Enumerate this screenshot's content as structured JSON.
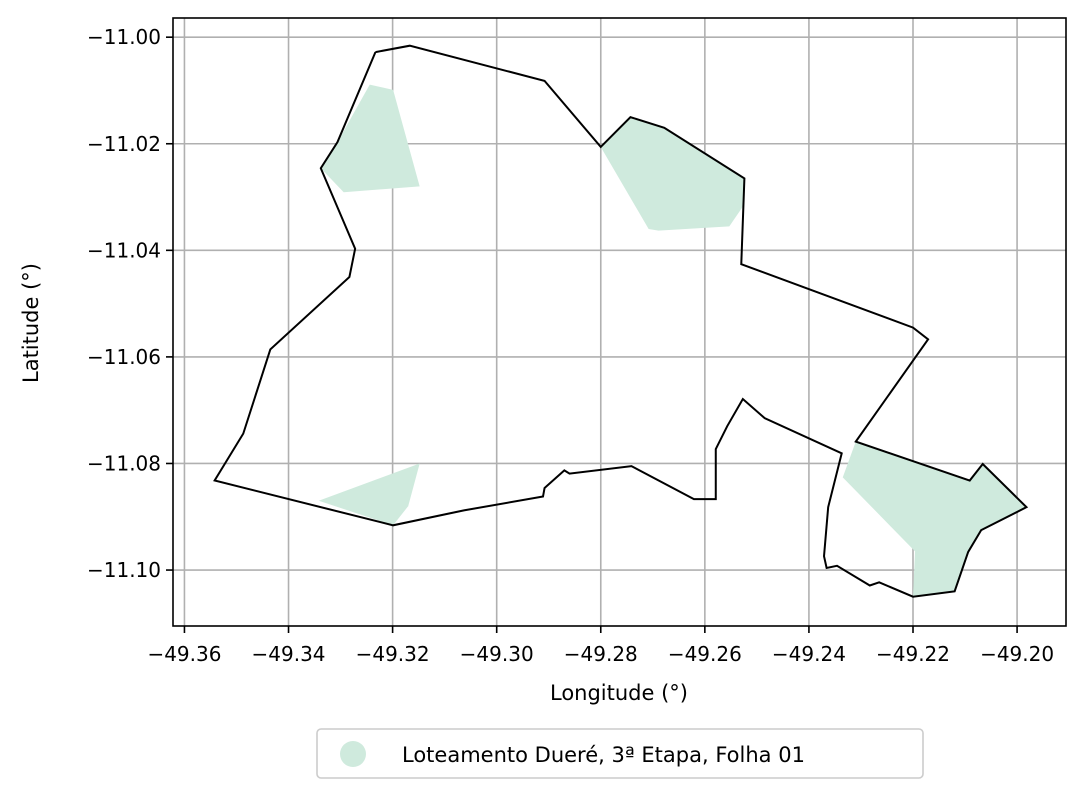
{
  "chart_data": {
    "type": "map",
    "xlabel": "Longitude (°)",
    "ylabel": "Latitude (°)",
    "xlim": [
      -49.3622,
      -49.1906
    ],
    "ylim": [
      -11.1105,
      -10.9964
    ],
    "xticks": [
      -49.36,
      -49.34,
      -49.32,
      -49.3,
      -49.28,
      -49.26,
      -49.24,
      -49.22,
      -49.2
    ],
    "xtick_labels": [
      "−49.36",
      "−49.34",
      "−49.32",
      "−49.30",
      "−49.28",
      "−49.26",
      "−49.24",
      "−49.22",
      "−49.20"
    ],
    "yticks": [
      -11.0,
      -11.02,
      -11.04,
      -11.06,
      -11.08,
      -11.1
    ],
    "ytick_labels": [
      "−11.00",
      "−11.02",
      "−11.04",
      "−11.06",
      "−11.08",
      "−11.10"
    ],
    "grid": true,
    "legend_position": "bottom-center, below plot",
    "legend": [
      {
        "label": "Loteamento Dueré, 3ª Etapa, Folha 01",
        "color": "#cfeadd",
        "marker": "circle"
      }
    ],
    "fill_color": "#cfeadd",
    "outline_color": "#000000",
    "boundary": [
      [
        -49.3233,
        -11.0028
      ],
      [
        -49.3167,
        -11.0016
      ],
      [
        -49.2908,
        -11.0082
      ],
      [
        -49.28,
        -11.0206
      ],
      [
        -49.2743,
        -11.015
      ],
      [
        -49.2678,
        -11.017
      ],
      [
        -49.2524,
        -11.0265
      ],
      [
        -49.253,
        -11.0426
      ],
      [
        -49.22,
        -11.0545
      ],
      [
        -49.2171,
        -11.0567
      ],
      [
        -49.231,
        -11.0759
      ],
      [
        -49.2091,
        -11.0832
      ],
      [
        -49.2066,
        -11.0801
      ],
      [
        -49.1982,
        -11.0882
      ],
      [
        -49.2069,
        -11.0925
      ],
      [
        -49.2094,
        -11.0966
      ],
      [
        -49.212,
        -11.104
      ],
      [
        -49.22,
        -11.105
      ],
      [
        -49.2265,
        -11.1023
      ],
      [
        -49.2283,
        -11.1029
      ],
      [
        -49.2346,
        -11.0992
      ],
      [
        -49.2366,
        -11.0996
      ],
      [
        -49.2371,
        -11.0974
      ],
      [
        -49.2363,
        -11.0882
      ],
      [
        -49.2337,
        -11.0781
      ],
      [
        -49.2485,
        -11.0715
      ],
      [
        -49.2527,
        -11.0679
      ],
      [
        -49.2557,
        -11.073
      ],
      [
        -49.2579,
        -11.0773
      ],
      [
        -49.2579,
        -11.0867
      ],
      [
        -49.2621,
        -11.0867
      ],
      [
        -49.2741,
        -11.0805
      ],
      [
        -49.286,
        -11.0819
      ],
      [
        -49.287,
        -11.0813
      ],
      [
        -49.2908,
        -11.0846
      ],
      [
        -49.2911,
        -11.0862
      ],
      [
        -49.3063,
        -11.0888
      ],
      [
        -49.3199,
        -11.0916
      ],
      [
        -49.3542,
        -11.0832
      ],
      [
        -49.3487,
        -11.0744
      ],
      [
        -49.3435,
        -11.0586
      ],
      [
        -49.3283,
        -11.045
      ],
      [
        -49.3272,
        -11.0397
      ],
      [
        -49.3338,
        -11.0246
      ],
      [
        -49.3306,
        -11.0197
      ],
      [
        -49.3233,
        -11.0028
      ]
    ],
    "shaded_regions": [
      [
        [
          -49.3244,
          -11.0089
        ],
        [
          -49.3199,
          -11.0099
        ],
        [
          -49.3148,
          -11.028
        ],
        [
          -49.3294,
          -11.0291
        ],
        [
          -49.3338,
          -11.0246
        ],
        [
          -49.3306,
          -11.0197
        ]
      ],
      [
        [
          -49.28,
          -11.0206
        ],
        [
          -49.2743,
          -11.015
        ],
        [
          -49.2678,
          -11.017
        ],
        [
          -49.2524,
          -11.0265
        ],
        [
          -49.2527,
          -11.0318
        ],
        [
          -49.2553,
          -11.0355
        ],
        [
          -49.2689,
          -11.0363
        ],
        [
          -49.2708,
          -11.036
        ]
      ],
      [
        [
          -49.3148,
          -11.08
        ],
        [
          -49.3342,
          -11.087
        ],
        [
          -49.3199,
          -11.0916
        ],
        [
          -49.317,
          -11.088
        ]
      ],
      [
        [
          -49.231,
          -11.0759
        ],
        [
          -49.2091,
          -11.0832
        ],
        [
          -49.2066,
          -11.0801
        ],
        [
          -49.1982,
          -11.0882
        ],
        [
          -49.2069,
          -11.0925
        ],
        [
          -49.2094,
          -11.0966
        ],
        [
          -49.212,
          -11.104
        ],
        [
          -49.22,
          -11.105
        ],
        [
          -49.2196,
          -11.0965
        ],
        [
          -49.2335,
          -11.0826
        ]
      ]
    ]
  }
}
